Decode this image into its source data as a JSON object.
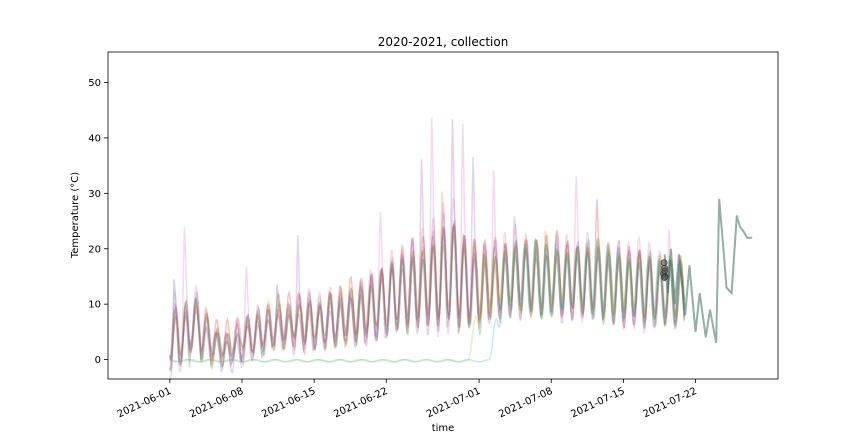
{
  "chart_data": {
    "type": "line",
    "title": "2020-2021, collection",
    "xlabel": "time",
    "ylabel": "Temperature (°C)",
    "x_range": [
      "2021-05-26",
      "2021-07-30"
    ],
    "xlim_days": [
      -6,
      59
    ],
    "ylim": [
      -3.5,
      55.5
    ],
    "yticks": [
      0,
      10,
      20,
      30,
      40,
      50
    ],
    "xticks": [
      {
        "date": "2021-06-01",
        "day": 0,
        "label": "2021-06-01"
      },
      {
        "date": "2021-06-08",
        "day": 7,
        "label": "2021-06-08"
      },
      {
        "date": "2021-06-15",
        "day": 14,
        "label": "2021-06-15"
      },
      {
        "date": "2021-06-22",
        "day": 21,
        "label": "2021-06-22"
      },
      {
        "date": "2021-07-01",
        "day": 30,
        "label": "2021-07-01"
      },
      {
        "date": "2021-07-08",
        "day": 37,
        "label": "2021-07-08"
      },
      {
        "date": "2021-07-15",
        "day": 44,
        "label": "2021-07-15"
      },
      {
        "date": "2021-07-22",
        "day": 51,
        "label": "2021-07-22"
      }
    ],
    "grid": false,
    "legend": "none",
    "series": [
      {
        "color": "#1f77b4",
        "base": [
          3,
          5,
          7,
          4,
          3,
          2,
          2,
          4,
          5,
          5,
          6,
          6,
          7,
          7,
          6,
          7,
          7,
          8,
          8,
          9,
          10,
          11,
          12,
          13,
          13,
          14,
          15,
          16,
          14,
          13,
          13,
          14,
          14,
          15,
          15,
          15,
          14,
          15,
          14,
          15,
          15,
          14,
          14,
          14,
          13,
          13,
          13,
          12,
          13,
          12
        ],
        "amp": [
          7,
          6,
          5,
          4,
          3,
          3,
          4,
          4,
          4,
          4,
          4,
          4,
          5,
          5,
          4,
          5,
          5,
          5,
          6,
          6,
          7,
          7,
          7,
          8,
          8,
          9,
          10,
          10,
          9,
          8,
          7,
          7,
          7,
          7,
          7,
          7,
          7,
          7,
          7,
          7,
          7,
          7,
          7,
          7,
          7,
          7,
          7,
          6,
          6,
          6
        ],
        "spikes": [
          [
            0.4,
            9
          ],
          [
            10.4,
            8
          ]
        ]
      },
      {
        "color": "#ff7f0e",
        "base": [
          4,
          5,
          6,
          4,
          3,
          3,
          3,
          4,
          5,
          6,
          6,
          6,
          7,
          7,
          7,
          7,
          8,
          8,
          9,
          10,
          11,
          12,
          13,
          13,
          14,
          15,
          15,
          16,
          14,
          14,
          14,
          14,
          15,
          15,
          15,
          15,
          14,
          15,
          15,
          15,
          14,
          15,
          14,
          14,
          13,
          14,
          13,
          13,
          12,
          12
        ],
        "amp": [
          6,
          6,
          5,
          4,
          3,
          3,
          3,
          4,
          4,
          4,
          4,
          4,
          5,
          5,
          5,
          5,
          5,
          6,
          6,
          7,
          7,
          7,
          8,
          8,
          9,
          9,
          10,
          10,
          9,
          8,
          8,
          7,
          7,
          7,
          7,
          7,
          7,
          7,
          7,
          7,
          7,
          7,
          7,
          7,
          7,
          7,
          7,
          6,
          6,
          6
        ],
        "spikes": [
          [
            26.4,
            12
          ],
          [
            36.4,
            8
          ]
        ]
      },
      {
        "color": "#2ca02c",
        "base": [
          4,
          4,
          6,
          4,
          2,
          2,
          3,
          4,
          4,
          5,
          6,
          6,
          7,
          6,
          6,
          7,
          7,
          8,
          8,
          9,
          10,
          11,
          12,
          12,
          13,
          14,
          14,
          15,
          13,
          13,
          12,
          13,
          14,
          14,
          14,
          15,
          14,
          14,
          14,
          14,
          14,
          14,
          13,
          13,
          13,
          13,
          12,
          12,
          12,
          12
        ],
        "amp": [
          6,
          6,
          5,
          4,
          3,
          3,
          3,
          4,
          4,
          4,
          4,
          4,
          4,
          5,
          4,
          5,
          5,
          5,
          6,
          6,
          7,
          7,
          7,
          8,
          8,
          9,
          10,
          10,
          9,
          8,
          8,
          7,
          7,
          7,
          7,
          7,
          7,
          7,
          7,
          7,
          7,
          7,
          7,
          7,
          7,
          7,
          7,
          6,
          6,
          6
        ],
        "spikes": [
          [
            56.4,
            6
          ]
        ]
      },
      {
        "color": "#d62728",
        "base": [
          5,
          5,
          7,
          5,
          3,
          3,
          4,
          5,
          5,
          6,
          7,
          7,
          7,
          7,
          7,
          8,
          8,
          9,
          9,
          10,
          11,
          12,
          13,
          14,
          14,
          15,
          16,
          17,
          15,
          14,
          14,
          15,
          15,
          16,
          16,
          15,
          15,
          16,
          15,
          15,
          15,
          15,
          14,
          14,
          13,
          14,
          13,
          13,
          12,
          12
        ],
        "amp": [
          6,
          6,
          6,
          5,
          4,
          4,
          4,
          4,
          5,
          5,
          5,
          5,
          5,
          5,
          5,
          6,
          6,
          6,
          6,
          7,
          7,
          8,
          8,
          9,
          9,
          10,
          11,
          11,
          10,
          9,
          8,
          8,
          8,
          8,
          8,
          8,
          8,
          8,
          8,
          8,
          8,
          8,
          8,
          8,
          8,
          8,
          8,
          7,
          7,
          7
        ],
        "spikes": [
          [
            41.4,
            10
          ]
        ]
      },
      {
        "color": "#9467bd",
        "base": [
          3,
          4,
          6,
          3,
          2,
          1,
          2,
          3,
          4,
          5,
          5,
          6,
          6,
          6,
          6,
          6,
          7,
          7,
          8,
          9,
          10,
          11,
          12,
          13,
          14,
          15,
          16,
          17,
          15,
          14,
          13,
          14,
          14,
          15,
          15,
          14,
          14,
          15,
          14,
          14,
          14,
          14,
          13,
          13,
          13,
          13,
          13,
          12,
          12,
          12
        ],
        "amp": [
          7,
          6,
          5,
          4,
          3,
          3,
          4,
          4,
          4,
          4,
          4,
          4,
          5,
          5,
          5,
          5,
          5,
          6,
          6,
          7,
          8,
          9,
          10,
          11,
          11,
          12,
          13,
          13,
          11,
          10,
          9,
          8,
          8,
          8,
          8,
          8,
          8,
          8,
          8,
          8,
          8,
          8,
          8,
          8,
          8,
          8,
          8,
          7,
          7,
          7
        ],
        "spikes": [
          [
            12.4,
            14
          ],
          [
            24.4,
            16
          ],
          [
            27.4,
            22
          ],
          [
            29.4,
            18
          ],
          [
            33.4,
            8
          ]
        ]
      },
      {
        "color": "#8c564b",
        "base": [
          4,
          5,
          6,
          4,
          3,
          2,
          3,
          4,
          5,
          5,
          6,
          6,
          7,
          7,
          6,
          7,
          7,
          8,
          8,
          9,
          10,
          11,
          12,
          13,
          13,
          14,
          15,
          16,
          14,
          13,
          13,
          14,
          14,
          14,
          15,
          14,
          14,
          14,
          14,
          14,
          14,
          14,
          13,
          13,
          13,
          13,
          12,
          12,
          12,
          12
        ],
        "amp": [
          6,
          6,
          5,
          4,
          3,
          3,
          3,
          4,
          4,
          4,
          4,
          4,
          5,
          5,
          4,
          5,
          5,
          5,
          6,
          6,
          7,
          7,
          7,
          8,
          8,
          9,
          10,
          10,
          9,
          8,
          8,
          7,
          7,
          7,
          7,
          7,
          7,
          7,
          7,
          7,
          7,
          7,
          7,
          7,
          7,
          7,
          7,
          6,
          6,
          6
        ],
        "spikes": []
      },
      {
        "color": "#e377c2",
        "base": [
          5,
          6,
          8,
          5,
          3,
          2,
          3,
          5,
          5,
          6,
          6,
          7,
          7,
          7,
          7,
          8,
          8,
          8,
          9,
          10,
          11,
          12,
          13,
          14,
          15,
          16,
          16,
          17,
          15,
          14,
          14,
          15,
          15,
          16,
          15,
          15,
          15,
          15,
          15,
          15,
          15,
          15,
          14,
          14,
          14,
          14,
          13,
          13,
          12,
          12
        ],
        "amp": [
          8,
          9,
          6,
          5,
          4,
          4,
          5,
          5,
          5,
          5,
          5,
          5,
          6,
          6,
          5,
          6,
          6,
          6,
          7,
          7,
          8,
          9,
          10,
          11,
          12,
          13,
          14,
          14,
          12,
          11,
          10,
          9,
          9,
          9,
          9,
          9,
          9,
          9,
          9,
          9,
          9,
          9,
          9,
          9,
          9,
          9,
          9,
          8,
          8,
          8
        ],
        "spikes": [
          [
            1.4,
            12
          ],
          [
            7.4,
            8
          ],
          [
            20.4,
            10
          ],
          [
            25.4,
            20
          ],
          [
            28.4,
            22
          ],
          [
            31.4,
            14
          ],
          [
            39.4,
            12
          ],
          [
            48.4,
            8
          ]
        ]
      },
      {
        "color": "#7f7f7f",
        "base": [
          4,
          4,
          6,
          4,
          3,
          2,
          2,
          4,
          4,
          5,
          6,
          6,
          6,
          6,
          6,
          7,
          7,
          8,
          8,
          9,
          10,
          11,
          12,
          12,
          13,
          14,
          14,
          15,
          13,
          13,
          13,
          13,
          14,
          14,
          14,
          14,
          14,
          14,
          14,
          14,
          14,
          14,
          13,
          13,
          13,
          13,
          12,
          12,
          12,
          12
        ],
        "amp": [
          6,
          6,
          5,
          4,
          3,
          3,
          3,
          4,
          4,
          4,
          4,
          4,
          4,
          5,
          4,
          5,
          5,
          5,
          6,
          6,
          7,
          7,
          7,
          8,
          8,
          9,
          10,
          10,
          9,
          8,
          8,
          7,
          7,
          7,
          7,
          7,
          7,
          7,
          7,
          7,
          7,
          7,
          7,
          7,
          7,
          7,
          7,
          6,
          6,
          6
        ],
        "spikes": []
      },
      {
        "color": "#bcbd22",
        "delayed_zero_until": 29,
        "rise_to": 15,
        "base": [
          0,
          0,
          0,
          0,
          0,
          0,
          0,
          0,
          0,
          0,
          0,
          0,
          0,
          0,
          0,
          0,
          0,
          0,
          0,
          0,
          0,
          0,
          0,
          0,
          0,
          0,
          0,
          0,
          0,
          0,
          12,
          14,
          15,
          15,
          15,
          15,
          15,
          15,
          15,
          15,
          15,
          15,
          14,
          14,
          14,
          14,
          13,
          13,
          13,
          13
        ],
        "amp": [
          0,
          0,
          0,
          0,
          0,
          0,
          0,
          0,
          0,
          0,
          0,
          0,
          0,
          0,
          0,
          0,
          0,
          0,
          0,
          0,
          0,
          0,
          0,
          0,
          0,
          0,
          0,
          0,
          0,
          0,
          6,
          7,
          7,
          7,
          7,
          7,
          7,
          7,
          7,
          7,
          7,
          7,
          7,
          7,
          7,
          7,
          7,
          6,
          6,
          6
        ],
        "spikes": [
          [
            55.4,
            10
          ]
        ]
      },
      {
        "color": "#17becf",
        "delayed_zero_until": 31,
        "rise_to": 14,
        "base": [
          0,
          0,
          0,
          0,
          0,
          0,
          0,
          0,
          0,
          0,
          0,
          0,
          0,
          0,
          0,
          0,
          0,
          0,
          0,
          0,
          0,
          0,
          0,
          0,
          0,
          0,
          0,
          0,
          0,
          0,
          0,
          0,
          14,
          15,
          15,
          15,
          14,
          15,
          14,
          15,
          14,
          15,
          14,
          14,
          13,
          13,
          13,
          13,
          12,
          12
        ],
        "amp": [
          0,
          0,
          0,
          0,
          0,
          0,
          0,
          0,
          0,
          0,
          0,
          0,
          0,
          0,
          0,
          0,
          0,
          0,
          0,
          0,
          0,
          0,
          0,
          0,
          0,
          0,
          0,
          0,
          0,
          0,
          0,
          0,
          7,
          7,
          7,
          7,
          7,
          7,
          7,
          7,
          7,
          7,
          7,
          7,
          7,
          7,
          7,
          6,
          6,
          6
        ],
        "spikes": []
      }
    ],
    "tail_series": {
      "color": "#3a6e5e",
      "points": [
        [
          48.0,
          19
        ],
        [
          48.3,
          12
        ],
        [
          48.6,
          20
        ],
        [
          49.0,
          10
        ],
        [
          49.4,
          19
        ],
        [
          50.0,
          8
        ],
        [
          50.4,
          17
        ],
        [
          51.0,
          5
        ],
        [
          51.4,
          12
        ],
        [
          52.0,
          4
        ],
        [
          52.4,
          9
        ],
        [
          53.0,
          3
        ],
        [
          53.3,
          29
        ],
        [
          53.7,
          20
        ],
        [
          54.0,
          13
        ],
        [
          54.5,
          12
        ],
        [
          55.0,
          26
        ],
        [
          55.3,
          24
        ],
        [
          55.7,
          23
        ],
        [
          56.0,
          22
        ],
        [
          56.5,
          22
        ]
      ]
    },
    "markers": {
      "color": "#4d4d4d",
      "points": [
        [
          47.95,
          17.5
        ],
        [
          48.0,
          16.5
        ],
        [
          47.9,
          15.5
        ],
        [
          48.05,
          15.0
        ],
        [
          47.98,
          14.8
        ],
        [
          48.02,
          16.0
        ]
      ]
    }
  }
}
